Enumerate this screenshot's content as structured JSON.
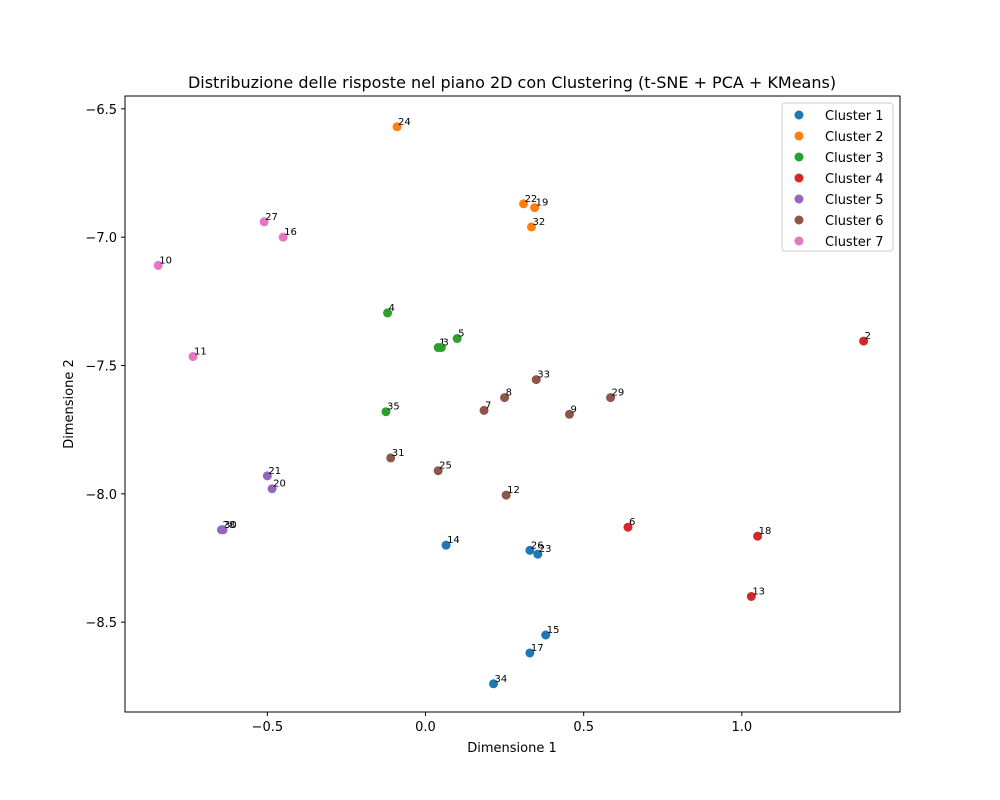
{
  "chart_data": {
    "type": "scatter",
    "title": "Distribuzione delle risposte nel piano 2D con Clustering (t-SNE + PCA + KMeans)",
    "xlabel": "Dimensione 1",
    "ylabel": "Dimensione 2",
    "xlim": [
      -0.95,
      1.5
    ],
    "ylim": [
      -8.85,
      -6.45
    ],
    "xticks": [
      -0.5,
      0.0,
      0.5,
      1.0
    ],
    "xtick_labels": [
      "−0.5",
      "0.0",
      "0.5",
      "1.0"
    ],
    "yticks": [
      -6.5,
      -7.0,
      -7.5,
      -8.0,
      -8.5
    ],
    "ytick_labels": [
      "−6.5",
      "−7.0",
      "−7.5",
      "−8.0",
      "−8.5"
    ],
    "grid": false,
    "legend_position": "top-right",
    "series": [
      {
        "name": "Cluster 1",
        "color": "#1f77b4",
        "points": [
          {
            "label": "14",
            "x": 0.065,
            "y": -8.2
          },
          {
            "label": "26",
            "x": 0.33,
            "y": -8.22
          },
          {
            "label": "23",
            "x": 0.355,
            "y": -8.235
          },
          {
            "label": "15",
            "x": 0.38,
            "y": -8.55
          },
          {
            "label": "17",
            "x": 0.33,
            "y": -8.62
          },
          {
            "label": "34",
            "x": 0.215,
            "y": -8.74
          }
        ]
      },
      {
        "name": "Cluster 2",
        "color": "#ff7f0e",
        "points": [
          {
            "label": "24",
            "x": -0.09,
            "y": -6.57
          },
          {
            "label": "22",
            "x": 0.31,
            "y": -6.87
          },
          {
            "label": "19",
            "x": 0.345,
            "y": -6.885
          },
          {
            "label": "32",
            "x": 0.335,
            "y": -6.96
          }
        ]
      },
      {
        "name": "Cluster 3",
        "color": "#2ca02c",
        "points": [
          {
            "label": "4",
            "x": -0.12,
            "y": -7.295
          },
          {
            "label": "1",
            "x": 0.04,
            "y": -7.43
          },
          {
            "label": "3",
            "x": 0.05,
            "y": -7.43
          },
          {
            "label": "5",
            "x": 0.1,
            "y": -7.395
          },
          {
            "label": "35",
            "x": -0.125,
            "y": -7.68
          }
        ]
      },
      {
        "name": "Cluster 4",
        "color": "#d62728",
        "points": [
          {
            "label": "2",
            "x": 1.385,
            "y": -7.405
          },
          {
            "label": "6",
            "x": 0.64,
            "y": -8.13
          },
          {
            "label": "18",
            "x": 1.05,
            "y": -8.165
          },
          {
            "label": "13",
            "x": 1.03,
            "y": -8.4
          }
        ]
      },
      {
        "name": "Cluster 5",
        "color": "#9467bd",
        "points": [
          {
            "label": "21",
            "x": -0.5,
            "y": -7.93
          },
          {
            "label": "20",
            "x": -0.485,
            "y": -7.98
          },
          {
            "label": "28",
            "x": -0.645,
            "y": -8.14
          },
          {
            "label": "30",
            "x": -0.64,
            "y": -8.14
          }
        ]
      },
      {
        "name": "Cluster 6",
        "color": "#8c564b",
        "points": [
          {
            "label": "33",
            "x": 0.35,
            "y": -7.555
          },
          {
            "label": "8",
            "x": 0.25,
            "y": -7.625
          },
          {
            "label": "7",
            "x": 0.185,
            "y": -7.675
          },
          {
            "label": "29",
            "x": 0.585,
            "y": -7.625
          },
          {
            "label": "9",
            "x": 0.455,
            "y": -7.69
          },
          {
            "label": "31",
            "x": -0.11,
            "y": -7.86
          },
          {
            "label": "25",
            "x": 0.04,
            "y": -7.91
          },
          {
            "label": "12",
            "x": 0.255,
            "y": -8.005
          }
        ]
      },
      {
        "name": "Cluster 7",
        "color": "#e377c2",
        "points": [
          {
            "label": "27",
            "x": -0.51,
            "y": -6.94
          },
          {
            "label": "16",
            "x": -0.45,
            "y": -7.0
          },
          {
            "label": "10",
            "x": -0.845,
            "y": -7.11
          },
          {
            "label": "11",
            "x": -0.735,
            "y": -7.465
          }
        ]
      }
    ]
  }
}
